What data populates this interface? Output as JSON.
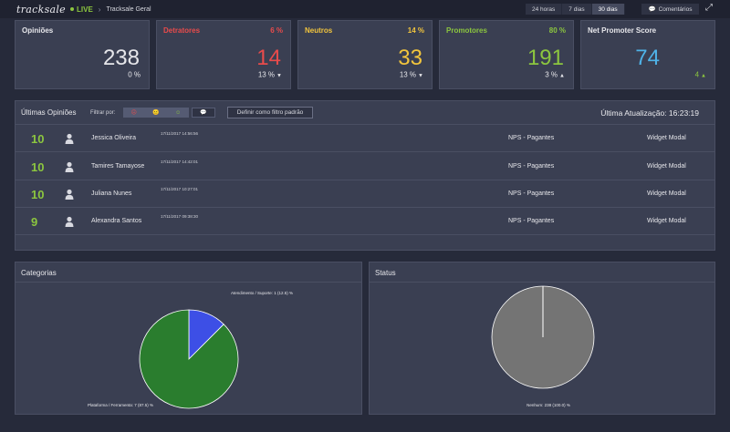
{
  "topbar": {
    "logo": "tracksale",
    "live": "LIVE",
    "breadcrumb": "Tracksale Geral",
    "ranges": [
      "24 horas",
      "7 dias",
      "30 dias"
    ],
    "active_range": "30 dias",
    "comments": "Comentários"
  },
  "kpis": [
    {
      "title": "Opiniões",
      "pct": "",
      "value": "238",
      "sub": "0 %",
      "arrow": "",
      "title_color": "#e6e6ea",
      "value_color": "#e6e6ea"
    },
    {
      "title": "Detratores",
      "pct": "6 %",
      "value": "14",
      "sub": "13 %",
      "arrow": "▼",
      "title_color": "#e94b4b",
      "value_color": "#e94b4b"
    },
    {
      "title": "Neutros",
      "pct": "14 %",
      "value": "33",
      "sub": "13 %",
      "arrow": "▼",
      "title_color": "#f2c53d",
      "value_color": "#f2c53d"
    },
    {
      "title": "Promotores",
      "pct": "80 %",
      "value": "191",
      "sub": "3 %",
      "arrow": "▲",
      "title_color": "#8cc63f",
      "value_color": "#8cc63f"
    },
    {
      "title": "Net Promoter Score",
      "pct": "",
      "value": "74",
      "sub": "4",
      "arrow": "▲",
      "title_color": "#e6e6ea",
      "value_color": "#4fb3e8"
    }
  ],
  "opinions": {
    "title": "Últimas Opiniões",
    "filter_label": "Filtrar por:",
    "filter_bubble": "💬",
    "default_filter": "Definir como filtro padrão",
    "last_update": "Última Atualização: 16:23:19",
    "rows": [
      {
        "score": "10",
        "name": "Jessica Oliveira",
        "date": "17/11/2017 14:56:56",
        "survey": "NPS - Pagantes",
        "channel": "Widget Modal"
      },
      {
        "score": "10",
        "name": "Tamires Tamayose",
        "date": "17/11/2017 14:42:01",
        "survey": "NPS - Pagantes",
        "channel": "Widget Modal"
      },
      {
        "score": "10",
        "name": "Juliana Nunes",
        "date": "17/11/2017 10:27:01",
        "survey": "NPS - Pagantes",
        "channel": "Widget Modal"
      },
      {
        "score": "9",
        "name": "Alexandra Santos",
        "date": "17/11/2017 09:38:30",
        "survey": "NPS - Pagantes",
        "channel": "Widget Modal"
      }
    ]
  },
  "categorias": {
    "title": "Categorias",
    "chart_data": {
      "type": "pie",
      "slices": [
        {
          "label": "Atendimento / Suporte: 1 (12.5) %",
          "value": 1,
          "color": "#3d4fe6"
        },
        {
          "label": "Plataforma / Ferramenta: 7 (87.5) %",
          "value": 7,
          "color": "#2a7d2e"
        }
      ]
    }
  },
  "status": {
    "title": "Status",
    "chart_data": {
      "type": "pie",
      "slices": [
        {
          "label": "Nenhum: 238 (100.0) %",
          "value": 238,
          "color": "#747474"
        }
      ]
    }
  },
  "colors": {
    "promoter": "#8cc63f",
    "detractor": "#e94b4b",
    "neutral": "#f2c53d",
    "nps": "#4fb3e8"
  }
}
